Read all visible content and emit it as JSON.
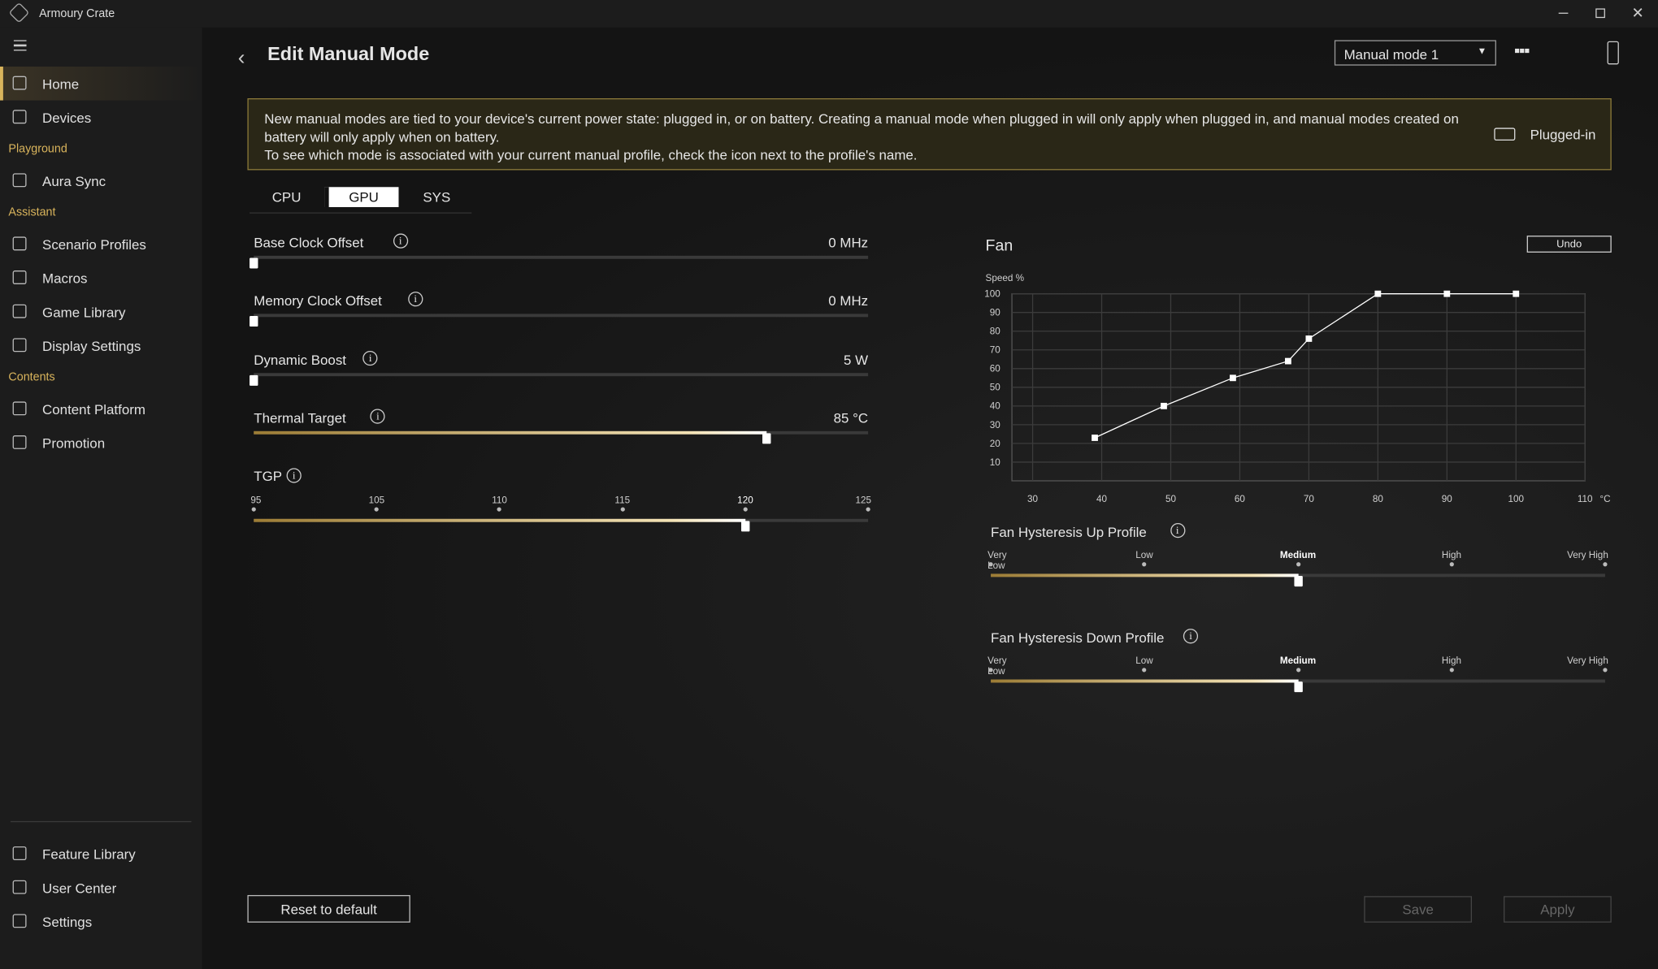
{
  "window": {
    "title": "Armoury Crate"
  },
  "sidebar": {
    "main": [
      "Home",
      "Devices"
    ],
    "groups": [
      {
        "heading": "Playground",
        "items": [
          "Aura Sync"
        ]
      },
      {
        "heading": "Assistant",
        "items": [
          "Scenario Profiles",
          "Macros",
          "Game Library",
          "Display Settings"
        ]
      },
      {
        "heading": "Contents",
        "items": [
          "Content Platform",
          "Promotion"
        ]
      }
    ],
    "bottom": [
      "Feature Library",
      "User Center",
      "Settings"
    ]
  },
  "header": {
    "title": "Edit Manual Mode",
    "mode_select": "Manual mode 1"
  },
  "notice": {
    "paragraphs": [
      "New manual modes are tied to your device's current power state: plugged in, or on battery. Creating a manual mode when plugged in will only apply when plugged in, and manual modes created on battery will only apply when on battery.",
      "To see which mode is associated with your current manual profile, check the icon next to the profile's name."
    ],
    "power_state": "Plugged-in"
  },
  "tabs": {
    "items": [
      "CPU",
      "GPU",
      "SYS"
    ],
    "active": 1
  },
  "sliders": [
    {
      "label": "Base Clock Offset",
      "value": "0 MHz"
    },
    {
      "label": "Memory Clock Offset",
      "value": "0 MHz"
    },
    {
      "label": "Dynamic Boost",
      "value": "5 W"
    },
    {
      "label": "Thermal Target",
      "value": "85 °C"
    }
  ],
  "tgp": {
    "label": "TGP",
    "steps": [
      "95",
      "105",
      "110",
      "115",
      "120",
      "125"
    ],
    "selected": 4
  },
  "chart_data": {
    "type": "line",
    "title": "Fan",
    "y_label": "Speed %",
    "x_unit": "°C",
    "x": [
      39,
      49,
      59,
      67,
      70,
      80,
      90,
      100
    ],
    "values": [
      23,
      40,
      55,
      64,
      76,
      100,
      100,
      100
    ],
    "color": "#ffffff",
    "xlim": [
      27,
      110
    ],
    "ylim": [
      0,
      100
    ],
    "xticks": [
      30,
      40,
      50,
      60,
      70,
      80,
      90,
      100,
      110
    ],
    "yticks": [
      10,
      20,
      30,
      40,
      50,
      60,
      70,
      80,
      90,
      100
    ],
    "grid": true
  },
  "fan_panel": {
    "undo": "Undo"
  },
  "hysteresis": [
    {
      "label": "Fan Hysteresis Up Profile",
      "levels": [
        "Very Low",
        "Low",
        "Medium",
        "High",
        "Very High"
      ],
      "selected": 2
    },
    {
      "label": "Fan Hysteresis Down Profile",
      "levels": [
        "Very Low",
        "Low",
        "Medium",
        "High",
        "Very High"
      ],
      "selected": 2
    }
  ],
  "footer": {
    "reset": "Reset to default",
    "save": "Save",
    "apply": "Apply"
  }
}
